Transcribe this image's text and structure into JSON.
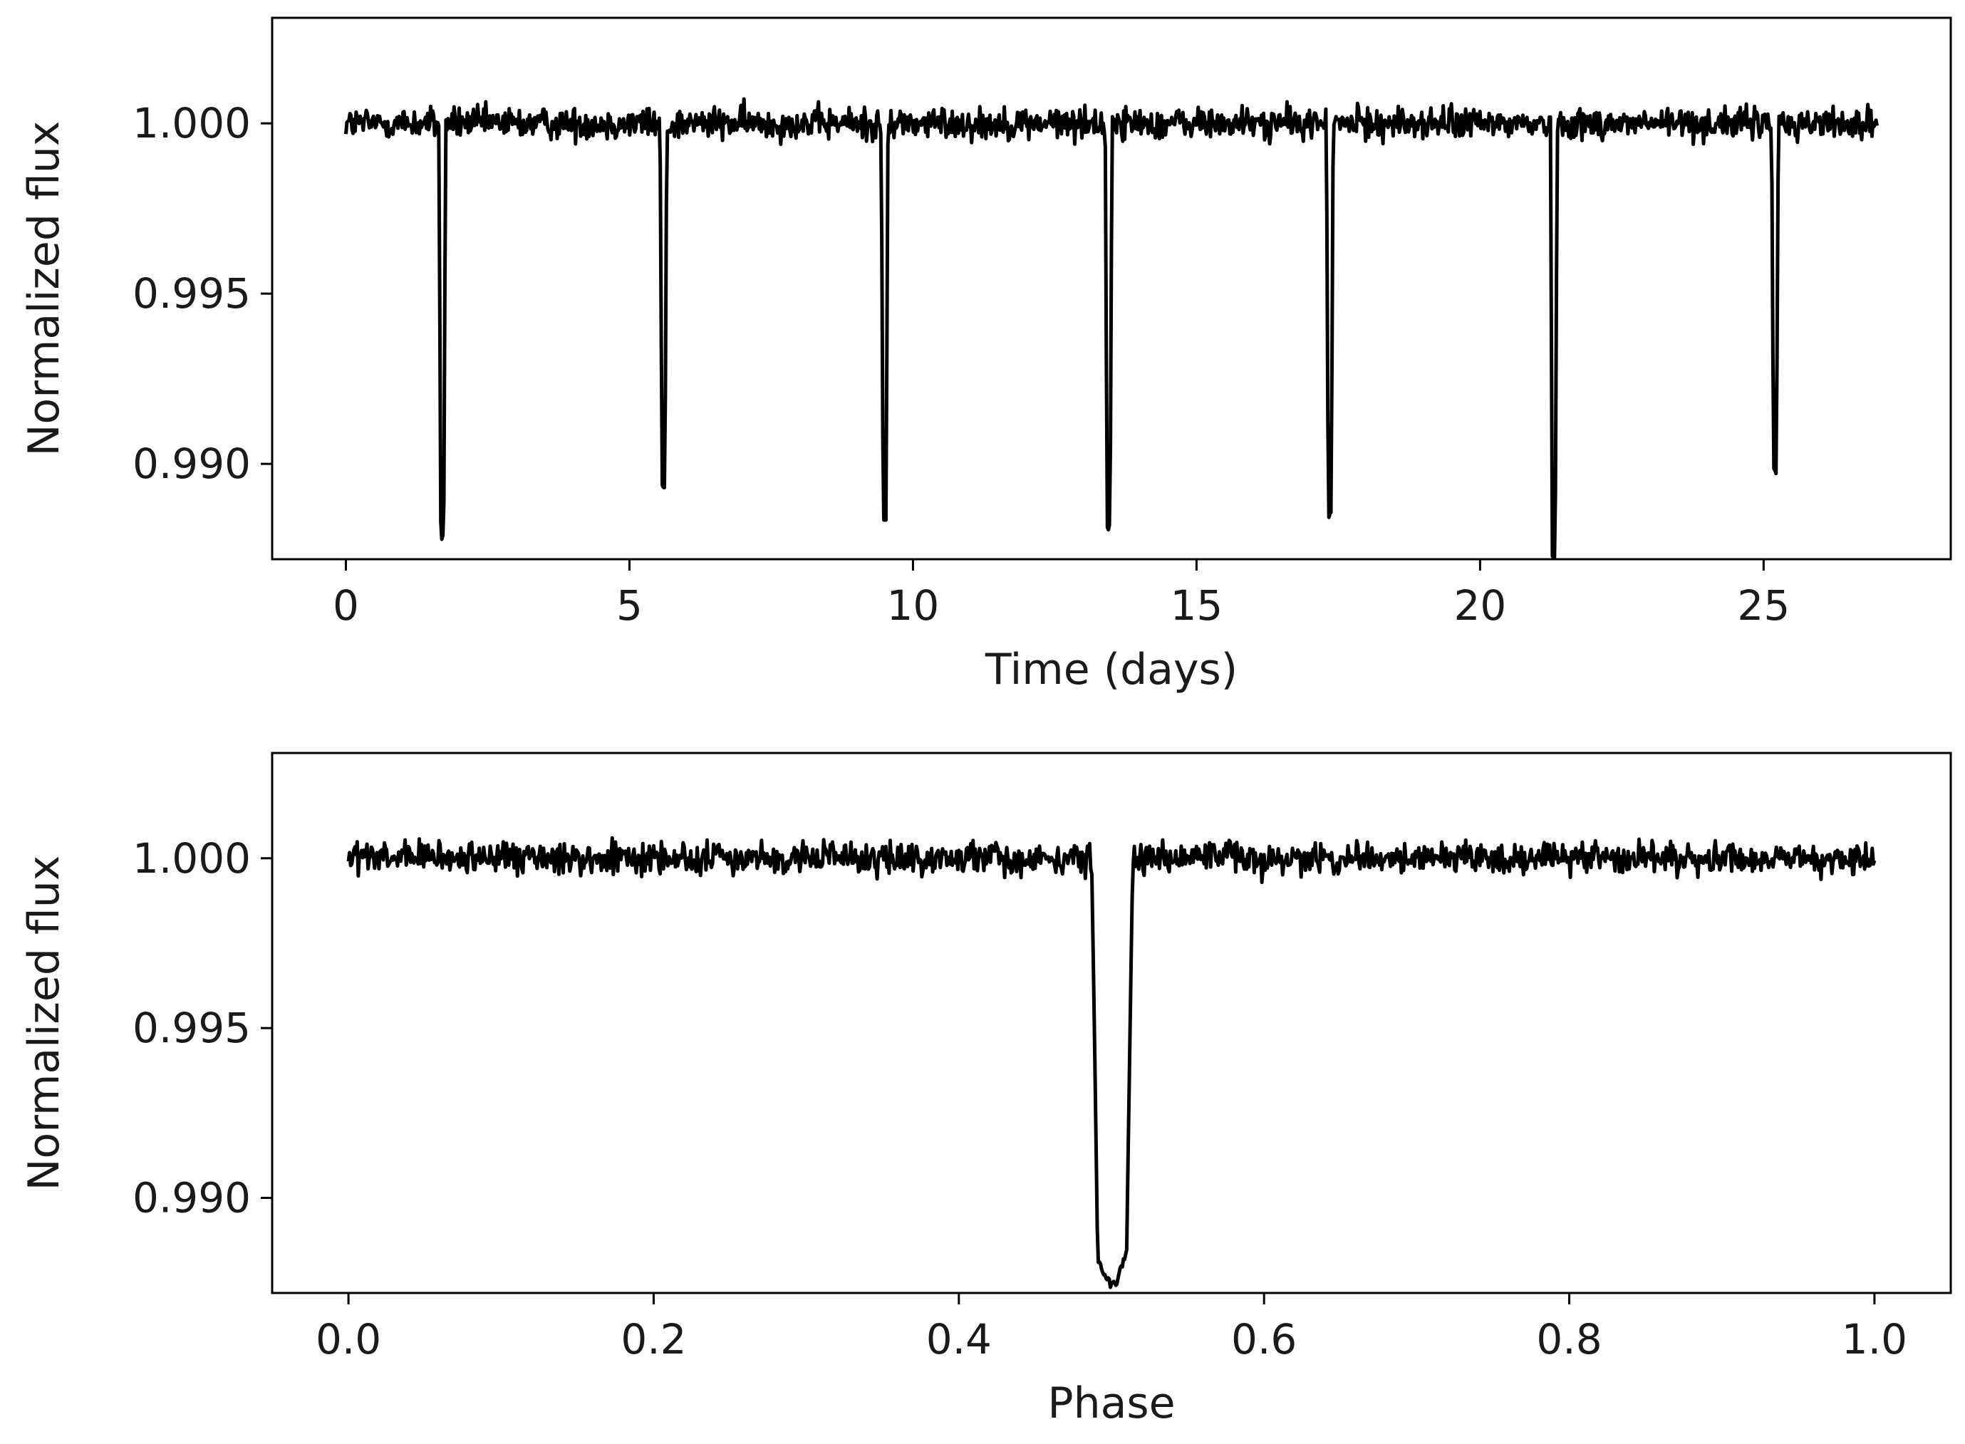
{
  "chart_data": [
    {
      "type": "line",
      "title": "",
      "xlabel": "Time (days)",
      "ylabel": "Normalized flux",
      "xlim": [
        -1.3,
        28.3
      ],
      "ylim": [
        0.9872,
        1.0031
      ],
      "xticks": [
        0,
        5,
        10,
        15,
        20,
        25
      ],
      "xtick_labels": [
        "0",
        "5",
        "10",
        "15",
        "20",
        "25"
      ],
      "yticks": [
        0.99,
        0.995,
        1.0
      ],
      "ytick_labels": [
        "0.990",
        "0.995",
        "1.000"
      ],
      "grid": false,
      "line_color": "#000000",
      "series": [
        {
          "baseline": 1.0,
          "noise_amplitude": 0.0008,
          "time_range": [
            0,
            27.0
          ],
          "transits": [
            {
              "time": 1.7,
              "depth": 0.98785
            },
            {
              "time": 5.6,
              "depth": 0.98935
            },
            {
              "time": 9.5,
              "depth": 0.98835
            },
            {
              "time": 13.45,
              "depth": 0.98815
            },
            {
              "time": 17.35,
              "depth": 0.9885
            },
            {
              "time": 21.3,
              "depth": 0.98735
            },
            {
              "time": 25.2,
              "depth": 0.98975
            }
          ]
        }
      ]
    },
    {
      "type": "line",
      "title": "",
      "xlabel": "Phase",
      "ylabel": "Normalized flux",
      "xlim": [
        -0.05,
        1.05
      ],
      "ylim": [
        0.9872,
        1.0031
      ],
      "xticks": [
        0.0,
        0.2,
        0.4,
        0.6,
        0.8,
        1.0
      ],
      "xtick_labels": [
        "0.0",
        "0.2",
        "0.4",
        "0.6",
        "0.8",
        "1.0"
      ],
      "yticks": [
        0.99,
        0.995,
        1.0
      ],
      "ytick_labels": [
        "0.990",
        "0.995",
        "1.000"
      ],
      "grid": false,
      "line_color": "#000000",
      "series": [
        {
          "baseline": 1.0,
          "noise_amplitude": 0.0008,
          "phase_range": [
            0.0,
            1.0
          ],
          "transit_center": 0.5,
          "transit_ingress": 0.487,
          "transit_egress": 0.514,
          "transit_min": 0.9875
        }
      ]
    }
  ]
}
